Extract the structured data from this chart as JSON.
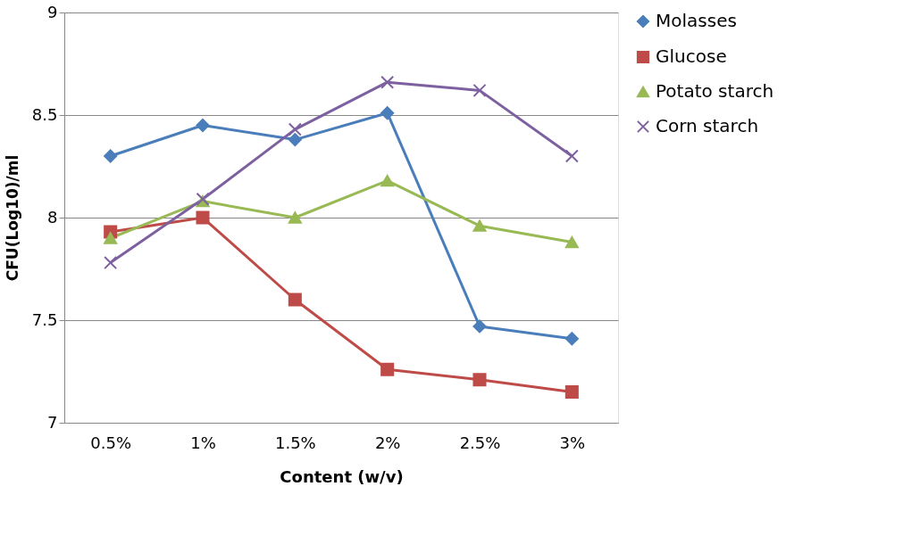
{
  "chart_data": {
    "type": "line",
    "xlabel": "Content  (w/v)",
    "ylabel": "CFU(Log10)/ml",
    "categories": [
      "0.5%",
      "1%",
      "1.5%",
      "2%",
      "2.5%",
      "3%"
    ],
    "series": [
      {
        "name": "Molasses",
        "color": "#4a7ebb",
        "marker": "diamond",
        "values": [
          8.3,
          8.45,
          8.38,
          8.51,
          7.47,
          7.41
        ]
      },
      {
        "name": "Glucose",
        "color": "#be4b48",
        "marker": "square",
        "values": [
          7.93,
          8.0,
          7.6,
          7.26,
          7.21,
          7.15
        ]
      },
      {
        "name": "Potato starch",
        "color": "#98b954",
        "marker": "triangle",
        "values": [
          7.9,
          8.08,
          8.0,
          8.18,
          7.96,
          7.88
        ]
      },
      {
        "name": "Corn starch",
        "color": "#7d60a0",
        "marker": "cross",
        "values": [
          7.78,
          8.09,
          8.43,
          8.66,
          8.62,
          8.3
        ]
      }
    ],
    "ylim": [
      7,
      9
    ],
    "yticks": [
      7,
      7.5,
      8,
      8.5,
      9
    ],
    "grid": "y",
    "legend": "right",
    "line_style": "solid"
  }
}
